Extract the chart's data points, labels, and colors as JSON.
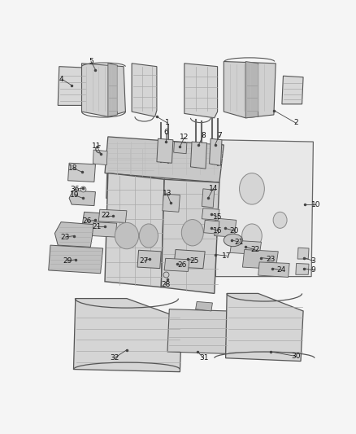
{
  "background_color": "#f5f5f5",
  "line_color": "#444444",
  "label_color": "#111111",
  "figsize": [
    4.38,
    5.33
  ],
  "dpi": 100,
  "part_color": "#e0e0e0",
  "part_edge": "#555555",
  "dark_part": "#c8c8c8",
  "label_fs": 6.5
}
